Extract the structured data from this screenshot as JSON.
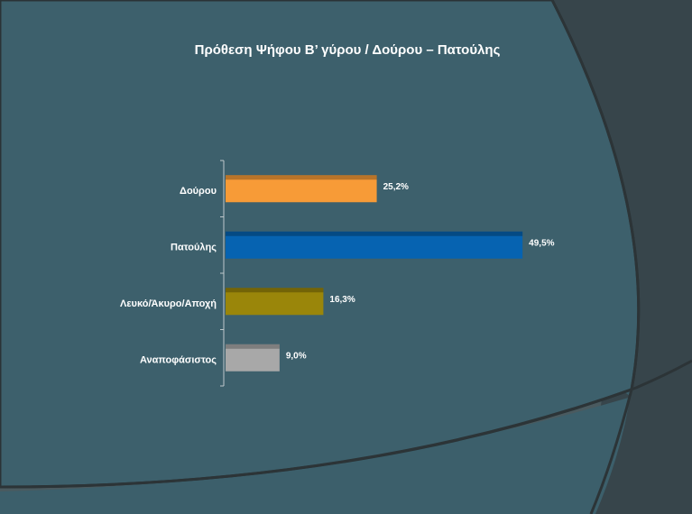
{
  "chart_data": {
    "type": "bar",
    "orientation": "horizontal",
    "title": "Πρόθεση Ψήφου Β’ γύρου / Δούρου – Πατούλης",
    "categories": [
      "Δούρου",
      "Πατούλης",
      "Λευκό/Άκυρο/Αποχή",
      "Αναποφάσιστος"
    ],
    "values": [
      25.2,
      49.5,
      16.3,
      9.0
    ],
    "value_labels": [
      "25,2%",
      "49,5%",
      "16,3%",
      "9,0%"
    ],
    "colors": [
      "#f79b37",
      "#0663b1",
      "#9a860a",
      "#a8a8a8"
    ]
  }
}
